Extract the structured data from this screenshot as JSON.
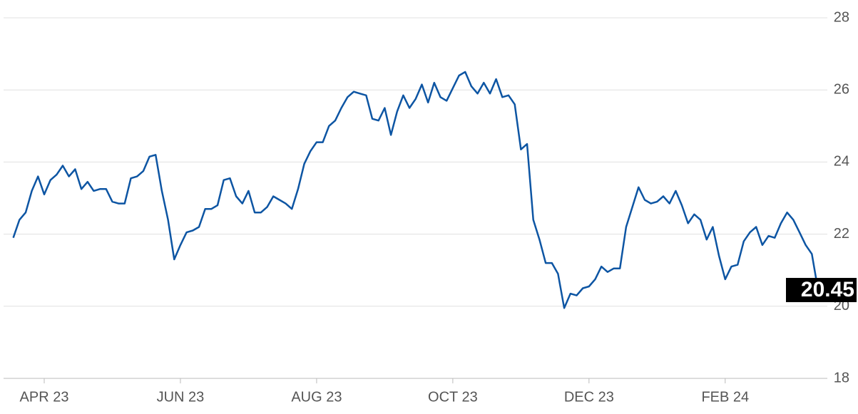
{
  "chart_data": {
    "type": "line",
    "categories": [
      null,
      null,
      null,
      null,
      null,
      "APR 23",
      null,
      null,
      null,
      null,
      null,
      null,
      null,
      null,
      null,
      null,
      null,
      null,
      null,
      null,
      null,
      null,
      null,
      null,
      null,
      null,
      null,
      "JUN 23",
      null,
      null,
      null,
      null,
      null,
      null,
      null,
      null,
      null,
      null,
      null,
      null,
      null,
      null,
      null,
      null,
      null,
      null,
      null,
      null,
      null,
      "AUG 23",
      null,
      null,
      null,
      null,
      null,
      null,
      null,
      null,
      null,
      null,
      null,
      null,
      null,
      null,
      null,
      null,
      null,
      null,
      null,
      null,
      null,
      "OCT 23",
      null,
      null,
      null,
      null,
      null,
      null,
      null,
      null,
      null,
      null,
      null,
      null,
      null,
      null,
      null,
      null,
      null,
      null,
      null,
      null,
      null,
      "DEC 23",
      null,
      null,
      null,
      null,
      null,
      null,
      null,
      null,
      null,
      null,
      null,
      null,
      null,
      null,
      null,
      null,
      null,
      null,
      null,
      null,
      null,
      "FEB 24",
      null,
      null,
      null,
      null,
      null,
      null,
      null,
      null,
      null,
      null,
      null,
      null,
      null,
      null,
      null
    ],
    "series": [
      {
        "color": "#0d55a3",
        "values": [
          21.9,
          22.4,
          22.6,
          23.2,
          23.6,
          23.1,
          23.5,
          23.65,
          23.9,
          23.6,
          23.8,
          23.25,
          23.45,
          23.2,
          23.25,
          23.25,
          22.9,
          22.85,
          22.85,
          23.55,
          23.6,
          23.75,
          24.15,
          24.2,
          23.2,
          22.4,
          21.3,
          21.7,
          22.05,
          22.1,
          22.2,
          22.7,
          22.7,
          22.8,
          23.5,
          23.55,
          23.05,
          22.85,
          23.2,
          22.6,
          22.6,
          22.75,
          23.05,
          22.95,
          22.85,
          22.7,
          23.25,
          23.95,
          24.3,
          24.55,
          24.55,
          25.0,
          25.15,
          25.5,
          25.8,
          25.95,
          25.9,
          25.85,
          25.2,
          25.15,
          25.5,
          24.75,
          25.4,
          25.85,
          25.5,
          25.75,
          26.15,
          25.65,
          26.2,
          25.8,
          25.7,
          26.05,
          26.4,
          26.5,
          26.1,
          25.9,
          26.2,
          25.9,
          26.3,
          25.8,
          25.85,
          25.6,
          24.35,
          24.5,
          22.4,
          21.85,
          21.2,
          21.2,
          20.9,
          19.95,
          20.35,
          20.3,
          20.5,
          20.55,
          20.75,
          21.1,
          20.95,
          21.05,
          21.05,
          22.2,
          22.75,
          23.3,
          22.95,
          22.85,
          22.9,
          23.05,
          22.85,
          23.2,
          22.8,
          22.3,
          22.55,
          22.4,
          21.85,
          22.2,
          21.4,
          20.75,
          21.1,
          21.15,
          21.8,
          22.05,
          22.2,
          21.7,
          21.95,
          21.9,
          22.3,
          22.6,
          22.4,
          22.05,
          21.7,
          21.45,
          20.45
        ]
      }
    ],
    "ylim": [
      18,
      28
    ],
    "yticks": [
      18,
      20,
      22,
      24,
      26,
      28
    ],
    "grid": true
  }
}
